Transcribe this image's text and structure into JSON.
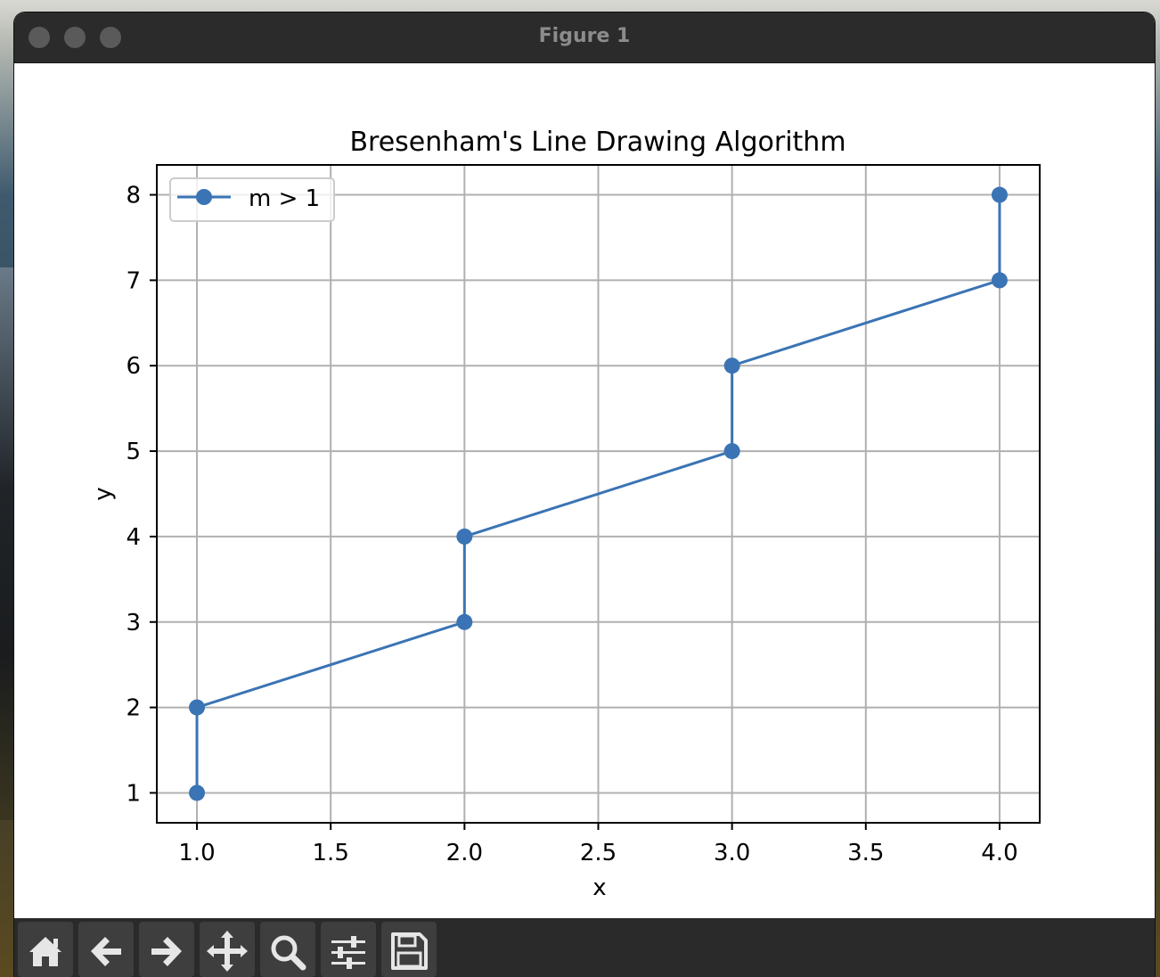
{
  "window": {
    "title": "Figure 1"
  },
  "toolbar": {
    "buttons": [
      {
        "name": "home-icon",
        "label": "Home"
      },
      {
        "name": "back-arrow-icon",
        "label": "Back"
      },
      {
        "name": "forward-arrow-icon",
        "label": "Forward"
      },
      {
        "name": "pan-icon",
        "label": "Pan"
      },
      {
        "name": "zoom-icon",
        "label": "Zoom"
      },
      {
        "name": "subplots-config-icon",
        "label": "Configure subplots"
      },
      {
        "name": "save-icon",
        "label": "Save"
      }
    ]
  },
  "chart_data": {
    "type": "line",
    "title": "Bresenham's Line Drawing Algorithm",
    "xlabel": "x",
    "ylabel": "y",
    "xlim": [
      0.85,
      4.15
    ],
    "ylim": [
      0.65,
      8.35
    ],
    "xticks": [
      "1.0",
      "1.5",
      "2.0",
      "2.5",
      "3.0",
      "3.5",
      "4.0"
    ],
    "xtick_values": [
      1.0,
      1.5,
      2.0,
      2.5,
      3.0,
      3.5,
      4.0
    ],
    "yticks": [
      "1",
      "2",
      "3",
      "4",
      "5",
      "6",
      "7",
      "8"
    ],
    "ytick_values": [
      1,
      2,
      3,
      4,
      5,
      6,
      7,
      8
    ],
    "grid": true,
    "legend_position": "top-left",
    "series": [
      {
        "name": "m > 1",
        "color": "#3a74b4",
        "marker": "circle",
        "points": [
          [
            1,
            1
          ],
          [
            1,
            2
          ],
          [
            2,
            3
          ],
          [
            2,
            4
          ],
          [
            3,
            5
          ],
          [
            3,
            6
          ],
          [
            4,
            7
          ],
          [
            4,
            8
          ]
        ]
      }
    ]
  }
}
